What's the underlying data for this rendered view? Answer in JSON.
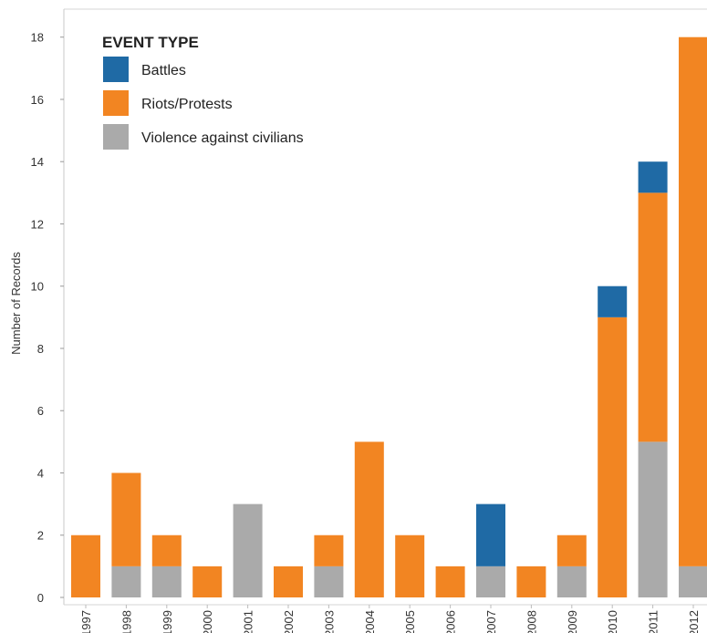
{
  "chart_data": {
    "type": "bar",
    "stacked": true,
    "ylabel": "Number of Records",
    "xlabel": "",
    "ylim": [
      0,
      18.9
    ],
    "yticks": [
      0,
      2,
      4,
      6,
      8,
      10,
      12,
      14,
      16,
      18
    ],
    "grid": false,
    "legend": {
      "title": "EVENT TYPE",
      "placement": "top-left"
    },
    "categories": [
      "1997",
      "1998",
      "1999",
      "2000",
      "2001",
      "2002",
      "2003",
      "2004",
      "2005",
      "2006",
      "2007",
      "2008",
      "2009",
      "2010",
      "2011",
      "2012"
    ],
    "series": [
      {
        "name": "Violence against civilians",
        "color": "#aaaaaa",
        "values": [
          0,
          1,
          1,
          0,
          3,
          0,
          1,
          0,
          0,
          0,
          1,
          0,
          1,
          0,
          5,
          1
        ]
      },
      {
        "name": "Riots/Protests",
        "color": "#f28522",
        "values": [
          2,
          3,
          1,
          1,
          0,
          1,
          1,
          5,
          2,
          1,
          0,
          1,
          1,
          9,
          8,
          17
        ]
      },
      {
        "name": "Battles",
        "color": "#1f6aa5",
        "values": [
          0,
          0,
          0,
          0,
          0,
          0,
          0,
          0,
          0,
          0,
          2,
          0,
          0,
          1,
          1,
          0
        ]
      }
    ],
    "legend_order": [
      "Battles",
      "Riots/Protests",
      "Violence against civilians"
    ]
  }
}
